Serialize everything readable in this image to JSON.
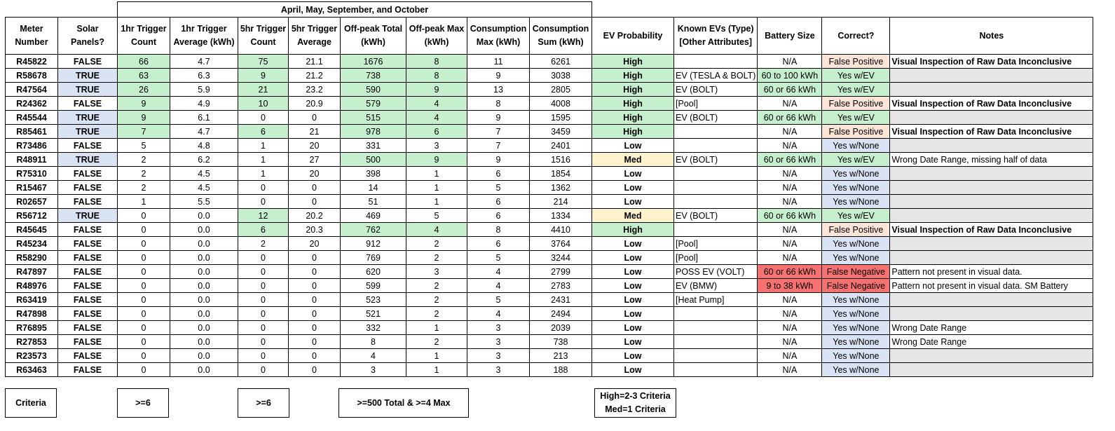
{
  "band_header": "April, May, September, and October",
  "columns": {
    "meter": "Meter Number",
    "solar": "Solar Panels?",
    "trig1_count": "1hr Trigger Count",
    "trig1_avg": "1hr Trigger Average (kWh)",
    "trig5_count": "5hr Trigger Count",
    "trig5_avg": "5hr Trigger Average",
    "offpeak_total": "Off-peak Total (kWh)",
    "offpeak_max": "Off-peak Max (kWh)",
    "cons_max": "Consumption Max (kWh)",
    "cons_sum": "Consumption Sum (kWh)",
    "ev_prob": "EV Probability",
    "known_evs": "Known EVs (Type) [Other Attributes]",
    "battery": "Battery Size",
    "correct": "Correct?",
    "notes": "Notes"
  },
  "rows": [
    [
      "R45822",
      "FALSE",
      "66",
      "4.7",
      "75",
      "21.1",
      "1676",
      "8",
      "11",
      "6261",
      "High",
      "",
      "N/A",
      "False Positive",
      "Visual Inspection of Raw Data Inconclusive"
    ],
    [
      "R58678",
      "TRUE",
      "63",
      "6.3",
      "9",
      "21.2",
      "738",
      "8",
      "9",
      "3038",
      "High",
      "EV (TESLA & BOLT)",
      "60 to 100 kWh",
      "Yes w/EV",
      ""
    ],
    [
      "R47564",
      "TRUE",
      "26",
      "5.9",
      "21",
      "23.2",
      "590",
      "9",
      "13",
      "2805",
      "High",
      "EV (BOLT)",
      "60 or 66 kWh",
      "Yes w/EV",
      ""
    ],
    [
      "R24362",
      "FALSE",
      "9",
      "4.9",
      "10",
      "20.9",
      "579",
      "4",
      "8",
      "4008",
      "High",
      "[Pool]",
      "N/A",
      "False Positive",
      "Visual Inspection of Raw Data Inconclusive"
    ],
    [
      "R45544",
      "TRUE",
      "9",
      "6.1",
      "0",
      "0",
      "515",
      "4",
      "9",
      "1595",
      "High",
      "EV (BOLT)",
      "60 or 66 kWh",
      "Yes w/EV",
      ""
    ],
    [
      "R85461",
      "TRUE",
      "7",
      "4.7",
      "6",
      "21",
      "978",
      "6",
      "7",
      "3459",
      "High",
      "",
      "N/A",
      "False Positive",
      "Visual Inspection of Raw Data Inconclusive"
    ],
    [
      "R73486",
      "FALSE",
      "5",
      "4.8",
      "1",
      "20",
      "331",
      "3",
      "7",
      "2401",
      "Low",
      "",
      "N/A",
      "Yes w/None",
      ""
    ],
    [
      "R48911",
      "TRUE",
      "2",
      "6.2",
      "1",
      "27",
      "500",
      "9",
      "9",
      "1516",
      "Med",
      "EV (BOLT)",
      "60 or 66 kWh",
      "Yes w/EV",
      "Wrong Date Range, missing half of data"
    ],
    [
      "R75310",
      "FALSE",
      "2",
      "4.5",
      "1",
      "20",
      "398",
      "1",
      "6",
      "1854",
      "Low",
      "",
      "N/A",
      "Yes w/None",
      ""
    ],
    [
      "R15467",
      "FALSE",
      "2",
      "4.5",
      "0",
      "0",
      "14",
      "1",
      "5",
      "1362",
      "Low",
      "",
      "N/A",
      "Yes w/None",
      ""
    ],
    [
      "R02657",
      "FALSE",
      "1",
      "5.5",
      "0",
      "0",
      "51",
      "1",
      "6",
      "214",
      "Low",
      "",
      "N/A",
      "Yes w/None",
      ""
    ],
    [
      "R56712",
      "TRUE",
      "0",
      "0.0",
      "12",
      "20.2",
      "469",
      "5",
      "6",
      "1334",
      "Med",
      "EV (BOLT)",
      "60 or 66 kWh",
      "Yes w/EV",
      ""
    ],
    [
      "R45645",
      "FALSE",
      "0",
      "0.0",
      "6",
      "20.3",
      "762",
      "4",
      "8",
      "4410",
      "High",
      "",
      "N/A",
      "False Positive",
      "Visual Inspection of Raw Data Inconclusive"
    ],
    [
      "R45234",
      "FALSE",
      "0",
      "0.0",
      "2",
      "20",
      "912",
      "2",
      "6",
      "3764",
      "Low",
      "[Pool]",
      "N/A",
      "Yes w/None",
      ""
    ],
    [
      "R58290",
      "FALSE",
      "0",
      "0.0",
      "0",
      "0",
      "769",
      "2",
      "5",
      "3244",
      "Low",
      "[Pool]",
      "N/A",
      "Yes w/None",
      ""
    ],
    [
      "R47897",
      "FALSE",
      "0",
      "0.0",
      "0",
      "0",
      "620",
      "3",
      "4",
      "2799",
      "Low",
      "POSS EV (VOLT)",
      "60 or 66 kWh",
      "False Negative",
      "Pattern not present in visual data."
    ],
    [
      "R48976",
      "FALSE",
      "0",
      "0.0",
      "0",
      "0",
      "599",
      "2",
      "4",
      "2783",
      "Low",
      "EV (BMW)",
      "9 to 38 kWh",
      "False Negative",
      "Pattern not present in visual data. SM Battery"
    ],
    [
      "R63419",
      "FALSE",
      "0",
      "0.0",
      "0",
      "0",
      "523",
      "2",
      "5",
      "2431",
      "Low",
      "[Heat Pump]",
      "N/A",
      "Yes w/None",
      ""
    ],
    [
      "R47898",
      "FALSE",
      "0",
      "0.0",
      "0",
      "0",
      "521",
      "2",
      "4",
      "2494",
      "Low",
      "",
      "N/A",
      "Yes w/None",
      ""
    ],
    [
      "R76895",
      "FALSE",
      "0",
      "0.0",
      "0",
      "0",
      "332",
      "1",
      "3",
      "2039",
      "Low",
      "",
      "N/A",
      "Yes w/None",
      "Wrong Date Range"
    ],
    [
      "R27853",
      "FALSE",
      "0",
      "0.0",
      "0",
      "0",
      "8",
      "2",
      "3",
      "738",
      "Low",
      "",
      "N/A",
      "Yes w/None",
      "Wrong Date Range"
    ],
    [
      "R23573",
      "FALSE",
      "0",
      "0.0",
      "0",
      "0",
      "4",
      "1",
      "3",
      "213",
      "Low",
      "",
      "N/A",
      "Yes w/None",
      ""
    ],
    [
      "R63463",
      "FALSE",
      "0",
      "0.0",
      "0",
      "0",
      "3",
      "1",
      "3",
      "188",
      "Low",
      "",
      "N/A",
      "Yes w/None",
      ""
    ]
  ],
  "criteria": {
    "label": "Criteria",
    "trig1": ">=6",
    "trig5": ">=6",
    "offpeak": ">=500 Total  &  >=4 Max",
    "prob_high": "High=2-3 Criteria",
    "prob_med": "Med=1 Criteria"
  },
  "colors": {
    "highlight_green": "#c6efce",
    "solar_true_blue": "#dae3f3",
    "medium_yellow": "#fff2cc",
    "false_positive_orange": "#fce4d6",
    "false_negative_red": "#f87171",
    "notes_gray": "#e7e6e6"
  }
}
